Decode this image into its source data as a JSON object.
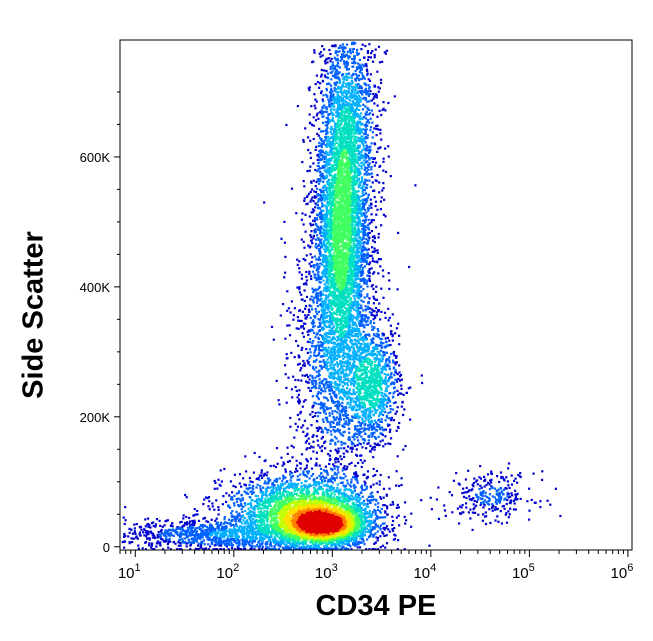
{
  "chart_data": {
    "type": "scatter",
    "title": "",
    "xlabel": "CD34 PE",
    "ylabel": "Side Scatter",
    "x_scale": "log",
    "xlim": [
      7,
      1100000
    ],
    "ylim": [
      -5000,
      780000
    ],
    "x_tick_labels": [
      {
        "value": 10,
        "base": "10",
        "exp": "1"
      },
      {
        "value": 100,
        "base": "10",
        "exp": "2"
      },
      {
        "value": 1000,
        "base": "10",
        "exp": "3"
      },
      {
        "value": 10000,
        "base": "10",
        "exp": "4"
      },
      {
        "value": 100000,
        "base": "10",
        "exp": "5"
      },
      {
        "value": 1000000,
        "base": "10",
        "exp": "6"
      }
    ],
    "y_tick_labels": [
      {
        "value": 0,
        "label": "0"
      },
      {
        "value": 200000,
        "label": "200K"
      },
      {
        "value": 400000,
        "label": "400K"
      },
      {
        "value": 600000,
        "label": "600K"
      }
    ],
    "density_colormap": [
      "#0000d0",
      "#0060ff",
      "#00b0ff",
      "#00e0c0",
      "#40ff60",
      "#c0ff00",
      "#ffe000",
      "#ff8000",
      "#e00000"
    ],
    "populations": [
      {
        "name": "",
        "cx": 800,
        "cy": 35000,
        "sx_log": 0.22,
        "sy": 16000,
        "n": 2600,
        "density": 1.0
      },
      {
        "name": "",
        "cx": 500,
        "cy": 55000,
        "sx_log": 0.4,
        "sy": 30000,
        "n": 2400,
        "density": 0.65
      },
      {
        "name": "",
        "cx": 1200,
        "cy": 480000,
        "sx_log": 0.13,
        "sy": 95000,
        "n": 3000,
        "density": 0.45
      },
      {
        "name": "",
        "cx": 1400,
        "cy": 640000,
        "sx_log": 0.16,
        "sy": 90000,
        "n": 1800,
        "density": 0.3
      },
      {
        "name": "",
        "cx": 2500,
        "cy": 250000,
        "sx_log": 0.14,
        "sy": 45000,
        "n": 900,
        "density": 0.38
      },
      {
        "name": "",
        "cx": 1100,
        "cy": 300000,
        "sx_log": 0.22,
        "sy": 110000,
        "n": 1800,
        "density": 0.2
      },
      {
        "name": "",
        "cx": 60,
        "cy": 20000,
        "sx_log": 0.45,
        "sy": 12000,
        "n": 900,
        "density": 0.18
      },
      {
        "name": "",
        "cx": 40000,
        "cy": 80000,
        "sx_log": 0.22,
        "sy": 18000,
        "n": 260,
        "density": 0.12
      }
    ]
  }
}
